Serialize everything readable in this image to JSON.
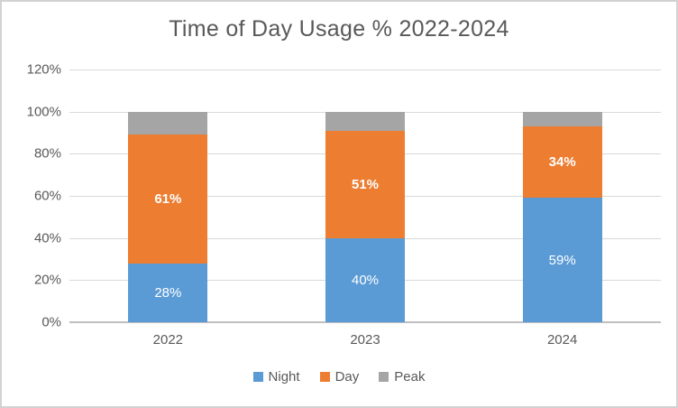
{
  "title": "Time of Day Usage % 2022-2024",
  "chart_data": {
    "type": "bar",
    "stacked": true,
    "title": "Time of Day Usage % 2022-2024",
    "categories": [
      "2022",
      "2023",
      "2024"
    ],
    "series": [
      {
        "name": "Night",
        "color": "#5B9BD5",
        "values": [
          28,
          40,
          59
        ],
        "labels": [
          "28%",
          "40%",
          "59%"
        ],
        "label_bold": false
      },
      {
        "name": "Day",
        "color": "#ED7D31",
        "values": [
          61,
          51,
          34
        ],
        "labels": [
          "61%",
          "51%",
          "34%"
        ],
        "label_bold": true
      },
      {
        "name": "Peak",
        "color": "#A5A5A5",
        "values": [
          11,
          9,
          7
        ],
        "labels": [
          "",
          "",
          ""
        ],
        "label_bold": false
      }
    ],
    "xlabel": "",
    "ylabel": "",
    "ylim": [
      0,
      120
    ],
    "ytick_step": 20,
    "yticks": [
      "0%",
      "20%",
      "40%",
      "60%",
      "80%",
      "100%",
      "120%"
    ],
    "grid": true,
    "legend_position": "bottom",
    "legend_items": [
      "Night",
      "Day",
      "Peak"
    ],
    "colors": {
      "night": "#5B9BD5",
      "day": "#ED7D31",
      "peak": "#A5A5A5",
      "title_text": "#595959",
      "axis_text": "#595959",
      "gridline": "#D9D9D9",
      "axis_line": "#BFBFBF",
      "data_label": "#FFFFFF"
    }
  }
}
